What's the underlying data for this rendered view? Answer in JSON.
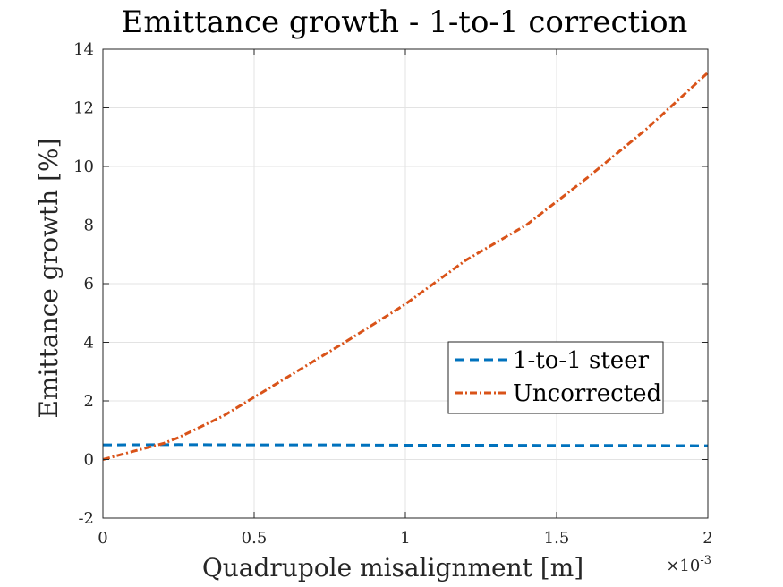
{
  "chart_data": {
    "type": "line",
    "title": "Emittance growth - 1-to-1 correction",
    "xlabel": "Quadrupole misalignment [m]",
    "ylabel": "Emittance growth [%]",
    "x_exponent_label": "×10",
    "x_exponent_power": "-3",
    "xlim": [
      0,
      2
    ],
    "ylim": [
      -2,
      14
    ],
    "grid": true,
    "legend_position": "center-right",
    "x_ticks": [
      0,
      0.5,
      1,
      1.5,
      2
    ],
    "x_tick_labels": [
      "0",
      "0.5",
      "1",
      "1.5",
      "2"
    ],
    "y_ticks": [
      -2,
      0,
      2,
      4,
      6,
      8,
      10,
      12,
      14
    ],
    "y_tick_labels": [
      "-2",
      "0",
      "2",
      "4",
      "6",
      "8",
      "10",
      "12",
      "14"
    ],
    "series": [
      {
        "name": "1-to-1 steer",
        "color": "#0072BD",
        "style": "dashed",
        "x": [
          0,
          0.25,
          0.5,
          0.75,
          1,
          1.25,
          1.5,
          1.75,
          2
        ],
        "y": [
          0.5,
          0.51,
          0.5,
          0.5,
          0.49,
          0.49,
          0.48,
          0.48,
          0.47
        ]
      },
      {
        "name": "Uncorrected",
        "color": "#D95319",
        "style": "dashdot",
        "x": [
          0,
          0.1,
          0.2,
          0.25,
          0.4,
          0.6,
          0.8,
          1.0,
          1.2,
          1.4,
          1.6,
          1.8,
          2.0
        ],
        "y": [
          0,
          0.28,
          0.55,
          0.75,
          1.5,
          2.75,
          4.0,
          5.3,
          6.8,
          8.0,
          9.6,
          11.3,
          13.2
        ]
      }
    ]
  }
}
